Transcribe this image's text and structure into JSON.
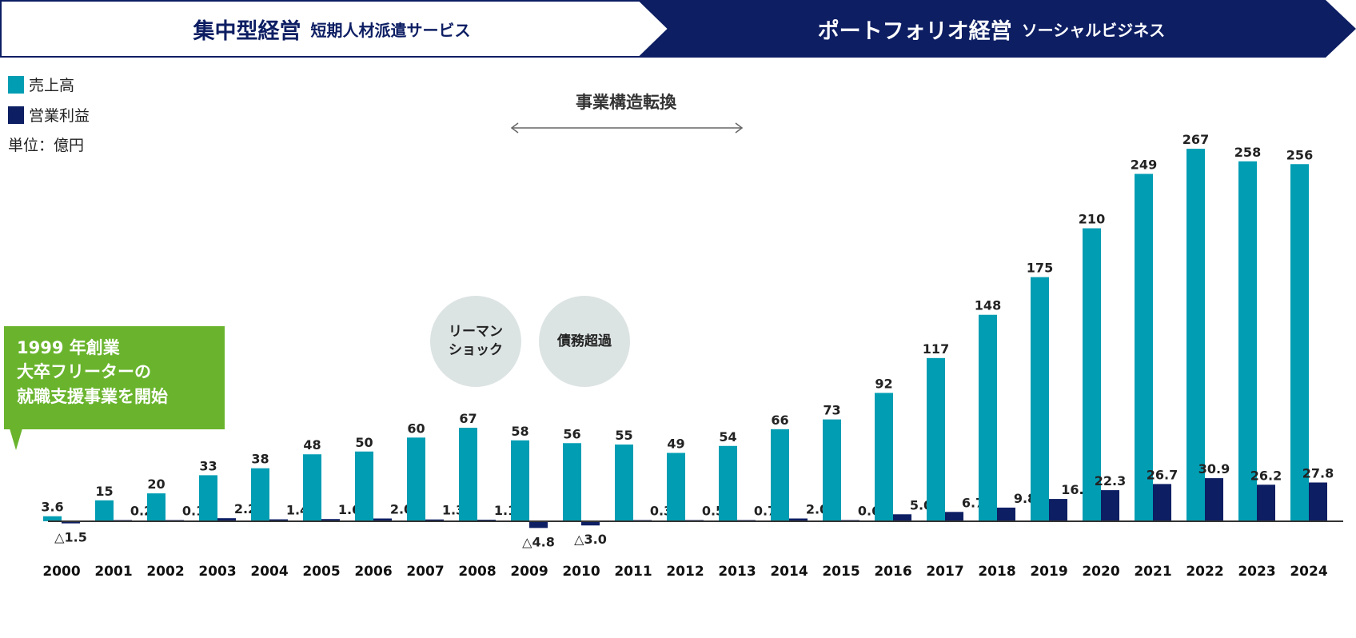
{
  "header": {
    "phase1": {
      "title": "集中型経営",
      "subtitle": "短期人材派遣サービス"
    },
    "phase2": {
      "title": "ポートフォリオ経営",
      "subtitle": "ソーシャルビジネス"
    }
  },
  "legend": {
    "sales": "売上高",
    "profit": "営業利益",
    "unit": "単位：億円"
  },
  "annotations": {
    "transition": "事業構造転換",
    "lehman": "リーマン\nショック",
    "insolvency": "債務超過",
    "founding": "1999 年創業\n大卒フリーターの\n就職支援事業を開始"
  },
  "colors": {
    "sales": "#009db3",
    "profit": "#0d1e63",
    "header_dark": "#0d1e63",
    "callout": "#6ab42d",
    "circle": "#dce3e3"
  },
  "chart_data": {
    "type": "bar",
    "categories": [
      "2000",
      "2001",
      "2002",
      "2003",
      "2004",
      "2005",
      "2006",
      "2007",
      "2008",
      "2009",
      "2010",
      "2011",
      "2012",
      "2013",
      "2014",
      "2015",
      "2016",
      "2017",
      "2018",
      "2019",
      "2020",
      "2021",
      "2022",
      "2023",
      "2024"
    ],
    "series": [
      {
        "name": "売上高",
        "values": [
          3.6,
          15,
          20,
          33,
          38,
          48,
          50,
          60,
          67,
          58,
          56,
          55,
          49,
          54,
          66,
          73,
          92,
          117,
          148,
          175,
          210,
          249,
          267,
          258,
          256
        ],
        "labels": [
          "3.6",
          "15",
          "20",
          "33",
          "38",
          "48",
          "50",
          "60",
          "67",
          "58",
          "56",
          "55",
          "49",
          "54",
          "66",
          "73",
          "92",
          "117",
          "148",
          "175",
          "210",
          "249",
          "267",
          "258",
          "256"
        ]
      },
      {
        "name": "営業利益",
        "values": [
          -1.5,
          0.2,
          0.1,
          2.2,
          1.4,
          1.6,
          2.0,
          1.3,
          1.1,
          -4.8,
          -3.0,
          0.3,
          0.5,
          0.7,
          2.0,
          0.6,
          5.0,
          6.7,
          9.8,
          16.0,
          22.3,
          26.7,
          30.9,
          26.2,
          27.8
        ],
        "labels": [
          "△1.5",
          "0.2",
          "0.1",
          "2.2",
          "1.4",
          "1.6",
          "2.0",
          "1.3",
          "1.1",
          "△4.8",
          "△3.0",
          "0.3",
          "0.5",
          "0.7",
          "2.0",
          "0.6",
          "5.0",
          "6.7",
          "9.8",
          "16.0",
          "22.3",
          "26.7",
          "30.9",
          "26.2",
          "27.8"
        ]
      }
    ],
    "unit": "億円",
    "ylim": [
      -5,
      270
    ],
    "grid": false,
    "legend_position": "top-left"
  }
}
